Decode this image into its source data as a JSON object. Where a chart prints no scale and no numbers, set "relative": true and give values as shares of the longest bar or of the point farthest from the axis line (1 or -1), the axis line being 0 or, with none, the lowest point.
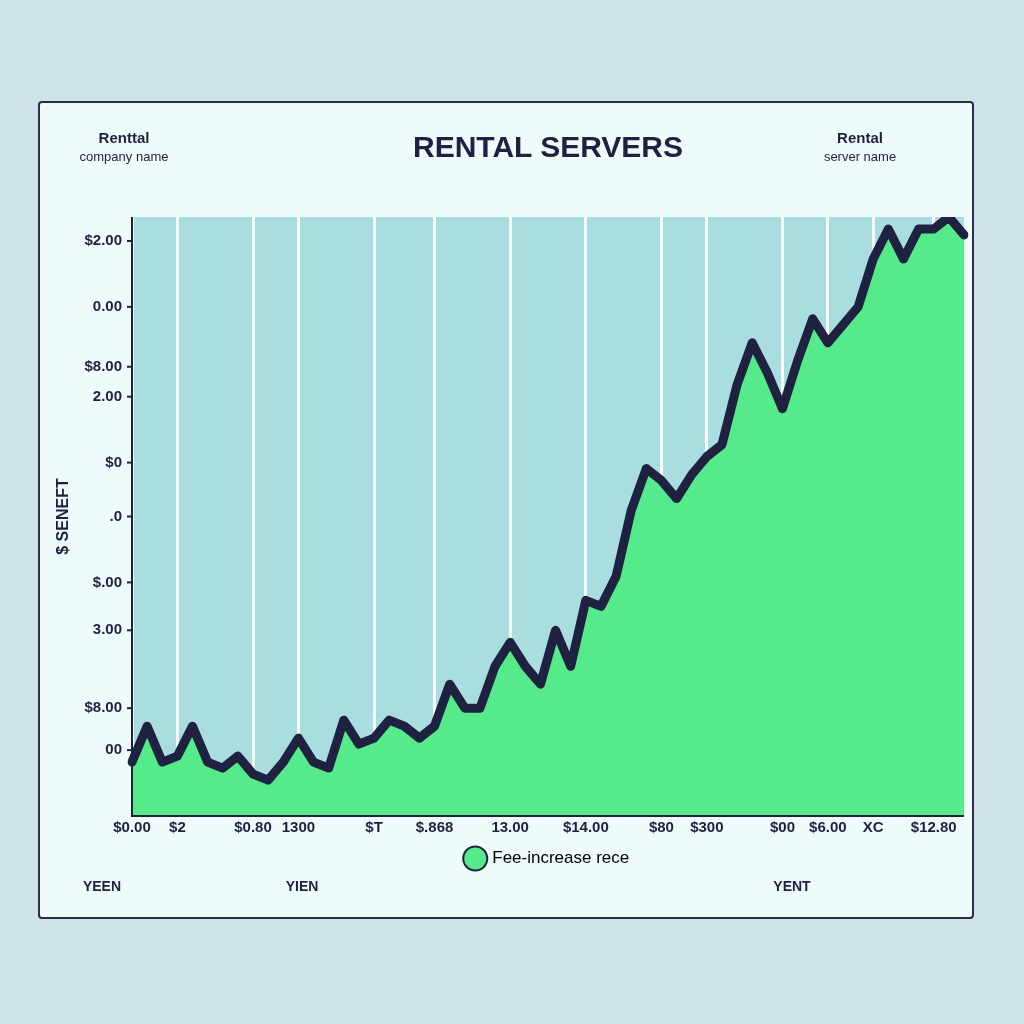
{
  "chart_data": {
    "type": "area",
    "title": "RENTAL SERVERS",
    "ylabel": "$ SENEFT",
    "relative": true,
    "annotations": [
      "Renttal company name",
      "Rental server name",
      "YEEN",
      "YIEN",
      "YENT",
      "$2.00",
      "0.00",
      "$8.00",
      "2.00",
      "$0",
      ".0",
      "$.00",
      "3.00",
      "$8.00",
      "00"
    ],
    "categories": [
      "$0.00",
      null,
      null,
      "$2",
      null,
      null,
      null,
      null,
      "$0.80",
      null,
      null,
      "1300",
      null,
      null,
      null,
      null,
      "$T",
      null,
      null,
      null,
      "$.868",
      null,
      null,
      null,
      null,
      "13.00",
      null,
      null,
      null,
      null,
      "$14.00",
      null,
      null,
      null,
      null,
      "$80",
      null,
      null,
      "$300",
      null,
      null,
      null,
      null,
      "$00",
      null,
      null,
      "$6.00",
      null,
      null,
      "XC",
      null,
      null,
      null,
      "$12.80",
      null,
      null
    ],
    "series": [
      {
        "name": "Fee-increase rece",
        "color": "#55ea8a",
        "values": [
          0.09,
          0.15,
          0.09,
          0.1,
          0.15,
          0.09,
          0.08,
          0.1,
          0.07,
          0.06,
          0.09,
          0.13,
          0.09,
          0.08,
          0.16,
          0.12,
          0.13,
          0.16,
          0.15,
          0.13,
          0.15,
          0.22,
          0.18,
          0.18,
          0.25,
          0.29,
          0.25,
          0.22,
          0.31,
          0.25,
          0.36,
          0.35,
          0.4,
          0.51,
          0.58,
          0.56,
          0.53,
          0.57,
          0.6,
          0.62,
          0.72,
          0.79,
          0.74,
          0.68,
          0.76,
          0.83,
          0.79,
          0.82,
          0.85,
          0.93,
          0.98,
          0.93,
          0.98,
          0.98,
          1,
          0.97
        ]
      }
    ],
    "grid": "x",
    "legend": "bottom"
  }
}
